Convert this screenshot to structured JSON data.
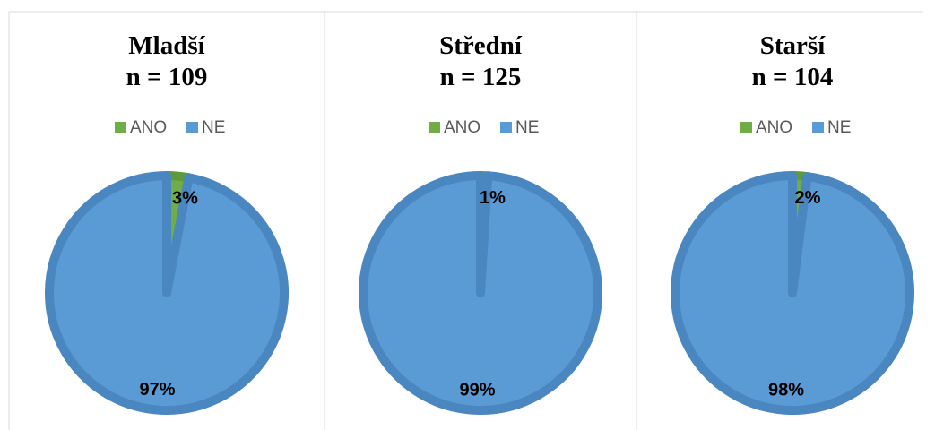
{
  "chart_data": [
    {
      "type": "pie",
      "title": "Mladší",
      "subtitle": "n = 109",
      "categories": [
        "ANO",
        "NE"
      ],
      "values": [
        3,
        97
      ],
      "value_labels": [
        "3%",
        "97%"
      ],
      "colors": [
        "#70ad47",
        "#5b9bd5"
      ],
      "legend": "top"
    },
    {
      "type": "pie",
      "title": "Střední",
      "subtitle": "n = 125",
      "categories": [
        "ANO",
        "NE"
      ],
      "values": [
        1,
        99
      ],
      "value_labels": [
        "1%",
        "99%"
      ],
      "colors": [
        "#70ad47",
        "#5b9bd5"
      ],
      "legend": "top"
    },
    {
      "type": "pie",
      "title": "Starší",
      "subtitle": "n = 104",
      "categories": [
        "ANO",
        "NE"
      ],
      "values": [
        2,
        98
      ],
      "value_labels": [
        "2%",
        "98%"
      ],
      "colors": [
        "#70ad47",
        "#5b9bd5"
      ],
      "legend": "top"
    }
  ]
}
